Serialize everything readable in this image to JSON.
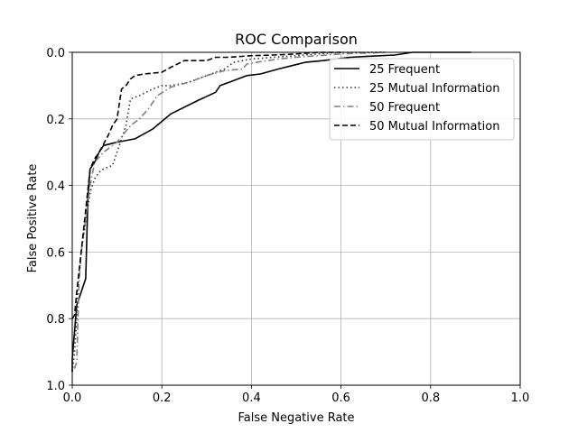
{
  "chart_data": {
    "type": "line",
    "title": "ROC Comparison",
    "xlabel": "False Negative Rate",
    "ylabel": "False Positive Rate",
    "xlim": [
      0,
      1
    ],
    "ylim": [
      0,
      1
    ],
    "y_inverted": true,
    "grid": true,
    "legend_position": "top-right",
    "xticks": [
      "0.0",
      "0.2",
      "0.4",
      "0.6",
      "0.8",
      "1.0"
    ],
    "yticks": [
      "0.0",
      "0.2",
      "0.4",
      "0.6",
      "0.8",
      "1.0"
    ],
    "series": [
      {
        "name": "25 Frequent",
        "color": "#000000",
        "style": "solid",
        "x": [
          0.0,
          0.0,
          0.01,
          0.03,
          0.035,
          0.04,
          0.05,
          0.06,
          0.07,
          0.1,
          0.14,
          0.18,
          0.22,
          0.25,
          0.28,
          0.32,
          0.33,
          0.36,
          0.39,
          0.42,
          0.46,
          0.49,
          0.52,
          0.56,
          0.62,
          0.66,
          0.72,
          0.76,
          0.89
        ],
        "y": [
          0.96,
          0.92,
          0.76,
          0.68,
          0.43,
          0.35,
          0.33,
          0.3,
          0.28,
          0.27,
          0.26,
          0.23,
          0.185,
          0.165,
          0.145,
          0.12,
          0.1,
          0.085,
          0.07,
          0.065,
          0.05,
          0.04,
          0.03,
          0.025,
          0.015,
          0.012,
          0.008,
          0.0,
          0.0
        ]
      },
      {
        "name": "25 Mutual Information",
        "color": "#333333",
        "style": "dotted",
        "x": [
          0.0,
          0.005,
          0.01,
          0.012,
          0.02,
          0.04,
          0.05,
          0.06,
          0.07,
          0.09,
          0.1,
          0.12,
          0.13,
          0.15,
          0.18,
          0.2,
          0.22,
          0.26,
          0.3,
          0.34,
          0.36,
          0.4,
          0.45,
          0.5,
          0.55,
          0.6,
          0.65,
          0.7
        ],
        "y": [
          0.96,
          0.9,
          0.8,
          0.7,
          0.6,
          0.42,
          0.38,
          0.36,
          0.35,
          0.34,
          0.3,
          0.22,
          0.14,
          0.13,
          0.11,
          0.1,
          0.1,
          0.09,
          0.07,
          0.05,
          0.03,
          0.02,
          0.015,
          0.01,
          0.005,
          0.0,
          0.0,
          0.0
        ]
      },
      {
        "name": "50 Frequent",
        "color": "#808080",
        "style": "dashdot",
        "x": [
          0.005,
          0.01,
          0.015,
          0.02,
          0.04,
          0.05,
          0.07,
          0.1,
          0.13,
          0.15,
          0.17,
          0.19,
          0.22,
          0.26,
          0.3,
          0.34,
          0.38,
          0.39,
          0.41,
          0.46,
          0.5,
          0.55,
          0.6,
          0.7
        ],
        "y": [
          0.95,
          0.93,
          0.7,
          0.6,
          0.4,
          0.33,
          0.3,
          0.27,
          0.22,
          0.2,
          0.17,
          0.13,
          0.105,
          0.09,
          0.07,
          0.055,
          0.05,
          0.035,
          0.03,
          0.02,
          0.015,
          0.01,
          0.005,
          0.0
        ]
      },
      {
        "name": "50 Mutual Information",
        "color": "#000000",
        "style": "dashed",
        "x": [
          0.0,
          0.005,
          0.01,
          0.02,
          0.04,
          0.05,
          0.06,
          0.08,
          0.09,
          0.1,
          0.11,
          0.12,
          0.13,
          0.14,
          0.16,
          0.2,
          0.22,
          0.25,
          0.28,
          0.3,
          0.32,
          0.35,
          0.4,
          0.45,
          0.5,
          0.55,
          0.6
        ],
        "y": [
          0.8,
          0.79,
          0.72,
          0.6,
          0.35,
          0.32,
          0.3,
          0.25,
          0.22,
          0.2,
          0.11,
          0.1,
          0.08,
          0.07,
          0.065,
          0.06,
          0.045,
          0.025,
          0.025,
          0.025,
          0.015,
          0.015,
          0.01,
          0.008,
          0.005,
          0.0,
          0.0
        ]
      }
    ]
  }
}
